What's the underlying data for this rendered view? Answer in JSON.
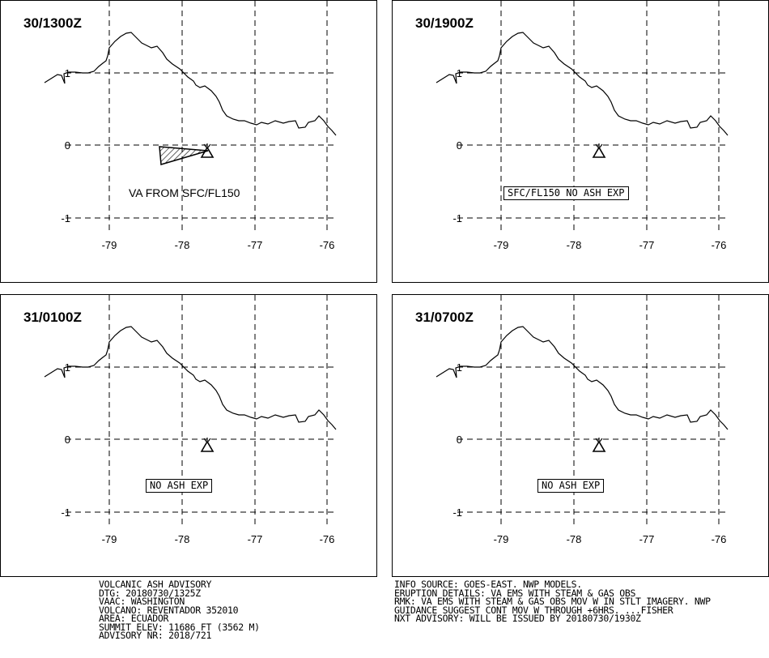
{
  "panels": [
    {
      "time": "30/1300Z",
      "label": "VA FROM SFC/FL150",
      "boxed": false
    },
    {
      "time": "30/1900Z",
      "label": "SFC/FL150 NO ASH EXP",
      "boxed": true
    },
    {
      "time": "31/0100Z",
      "label": "NO ASH EXP",
      "boxed": true
    },
    {
      "time": "31/0700Z",
      "label": "NO ASH EXP",
      "boxed": true
    }
  ],
  "axes": {
    "lon_ticks": [
      "-79",
      "-78",
      "-77",
      "-76"
    ],
    "lat_ticks": [
      "1",
      "0",
      "-1"
    ]
  },
  "advisory_left": [
    "VOLCANIC ASH ADVISORY",
    "DTG: 20180730/1325Z",
    "VAAC: WASHINGTON",
    "VOLCANO: REVENTADOR 352010",
    "AREA: ECUADOR",
    "SUMMIT ELEV: 11686 FT (3562 M)",
    "ADVISORY NR: 2018/721"
  ],
  "advisory_right": [
    "INFO SOURCE: GOES-EAST. NWP MODELS.",
    "ERUPTION DETAILS: VA EMS WITH STEAM & GAS OBS",
    "RMK: VA EMS WITH STEAM & GAS OBS MOV W IN STLT IMAGERY. NWP",
    "GUIDANCE SUGGEST CONT MOV W THROUGH +6HRS. ...FISHER",
    "NXT ADVISORY: WILL BE ISSUED BY 20180730/1930Z"
  ]
}
